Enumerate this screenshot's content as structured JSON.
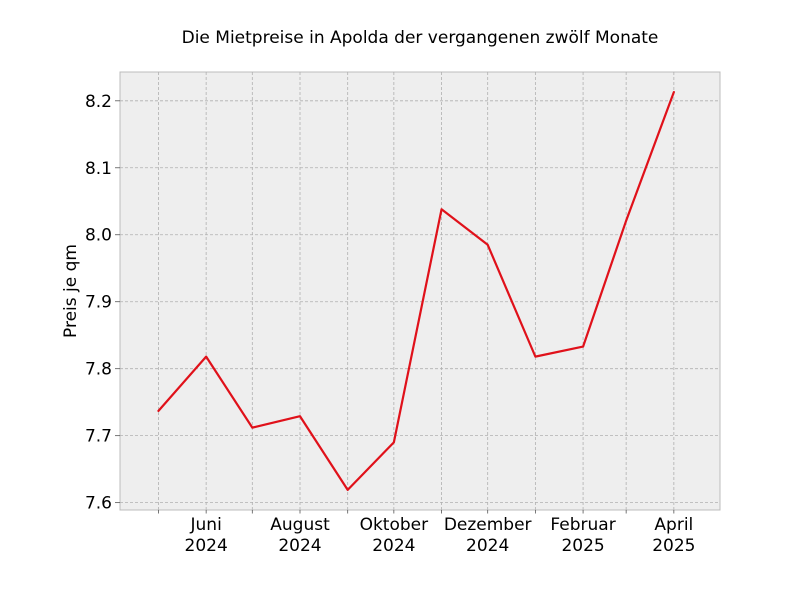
{
  "chart_data": {
    "type": "line",
    "title": "Die Mietpreise in Apolda der vergangenen zwölf Monate",
    "xlabel": "",
    "ylabel": "Preis je qm",
    "x": [
      "2024-05",
      "2024-06",
      "2024-07",
      "2024-08",
      "2024-09",
      "2024-10",
      "2024-11",
      "2024-12",
      "2025-01",
      "2025-02",
      "2025-03",
      "2025-04"
    ],
    "series": [
      {
        "name": "",
        "values": [
          7.737,
          7.818,
          7.712,
          7.729,
          7.619,
          7.69,
          8.038,
          7.985,
          7.818,
          7.833,
          8.021,
          8.213
        ],
        "color": "#e0111a"
      }
    ],
    "xticks": [
      {
        "month_index": 1,
        "label": [
          "Juni",
          "2024"
        ]
      },
      {
        "month_index": 3,
        "label": [
          "August",
          "2024"
        ]
      },
      {
        "month_index": 5,
        "label": [
          "Oktober",
          "2024"
        ]
      },
      {
        "month_index": 7,
        "label": [
          "Dezember",
          "2024"
        ]
      },
      {
        "month_index": 9,
        "label": [
          "Februar",
          "2025"
        ]
      },
      {
        "month_index": 11,
        "label": [
          "April",
          "2025"
        ]
      }
    ],
    "yticks": [
      "7.6",
      "7.7",
      "7.8",
      "7.9",
      "8.0",
      "8.1",
      "8.2"
    ],
    "ylim": [
      7.589,
      8.243
    ],
    "xlim": [
      "2024-04-20",
      "2025-05-15"
    ],
    "grid": true,
    "plot_background": "#eeeeee"
  }
}
